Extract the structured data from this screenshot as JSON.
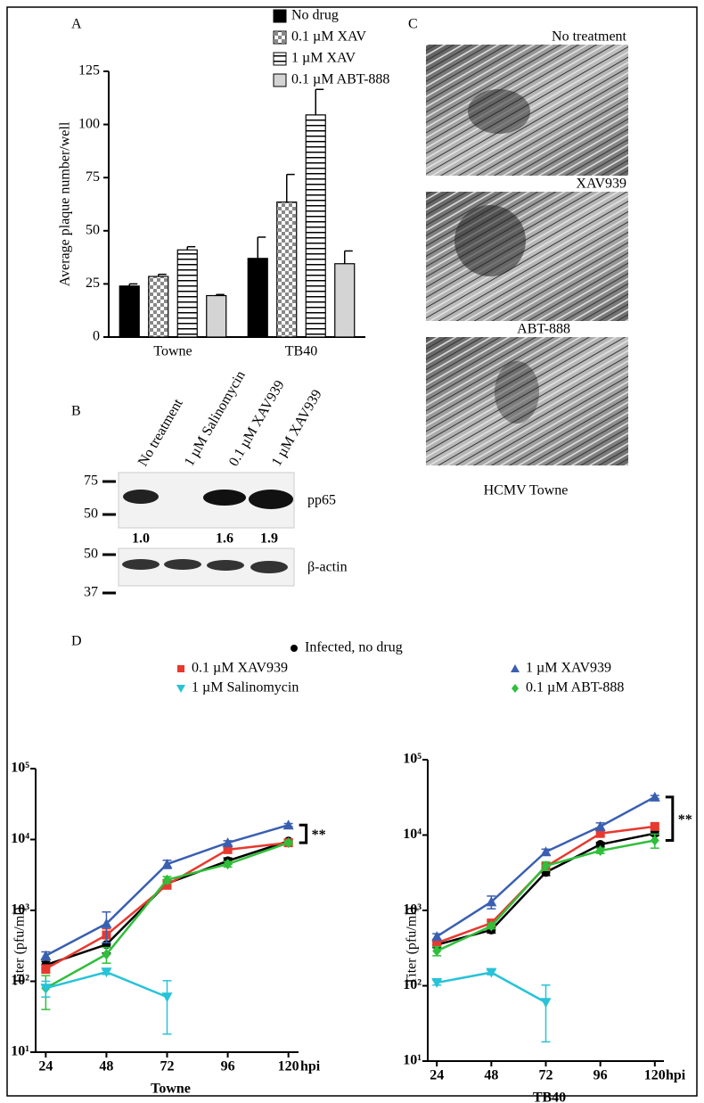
{
  "panels": {
    "a": "A",
    "b": "B",
    "c": "C",
    "d": "D"
  },
  "chart_data": [
    {
      "type": "bar",
      "ylabel": "Average plaque number/well",
      "categories": [
        "Towne",
        "TB40"
      ],
      "ylim": [
        0,
        125
      ],
      "yticks": [
        0,
        25,
        50,
        75,
        100,
        125
      ],
      "series": [
        {
          "name": "No drug",
          "color": "#000000",
          "pattern": "solid",
          "values": [
            24,
            37
          ],
          "errors": [
            1,
            10
          ]
        },
        {
          "name": "0.1 µM XAV",
          "color": "#888888",
          "pattern": "checker",
          "values": [
            28.5,
            63.5
          ],
          "errors": [
            1,
            13
          ]
        },
        {
          "name": "1 µM XAV",
          "color": "#000000",
          "pattern": "hstripes",
          "values": [
            41,
            104.5
          ],
          "errors": [
            1.5,
            12
          ]
        },
        {
          "name": "0.1 µM ABT-888",
          "color": "#d4d4d4",
          "pattern": "solid",
          "values": [
            19.5,
            34.5
          ],
          "errors": [
            0.5,
            6
          ]
        }
      ]
    },
    {
      "type": "line",
      "title": "Towne",
      "xlabel": "hpi",
      "ylabel": "Titer (pfu/ml)",
      "log_y": true,
      "annotation": "**",
      "x": [
        24,
        48,
        72,
        96,
        120
      ],
      "xlim": [
        20,
        124
      ],
      "xticks": [
        24,
        48,
        72,
        96,
        120
      ],
      "ylim": [
        10,
        100000
      ],
      "yticks": [
        {
          "value": 10,
          "label": "10¹"
        },
        {
          "value": 100,
          "label": "10²"
        },
        {
          "value": 1000,
          "label": "10³"
        },
        {
          "value": 10000,
          "label": "10⁴"
        },
        {
          "value": 100000,
          "label": "10⁵"
        }
      ],
      "series": [
        {
          "name": "Infected, no drug",
          "color": "#000000",
          "marker": "circle",
          "values": [
            170,
            330,
            2400,
            5000,
            9500
          ],
          "errors": [
            20,
            80,
            300,
            500,
            600
          ]
        },
        {
          "name": "0.1 µM XAV939",
          "color": "#e8392f",
          "marker": "square",
          "values": [
            150,
            450,
            2300,
            7200,
            9000
          ],
          "errors": [
            20,
            100,
            300,
            600,
            500
          ]
        },
        {
          "name": "1 µM XAV939",
          "color": "#3a5fb0",
          "marker": "triangle",
          "values": [
            230,
            650,
            4500,
            9000,
            16000
          ],
          "errors": [
            30,
            300,
            600,
            600,
            800
          ]
        },
        {
          "name": "0.1 µM ABT-888",
          "color": "#2fbf3a",
          "marker": "diamond",
          "values": [
            80,
            240,
            2700,
            4500,
            9000
          ],
          "errors": [
            40,
            60,
            300,
            400,
            500
          ]
        },
        {
          "name": "1 µM Salinomycin",
          "color": "#27c3d8",
          "marker": "tridown",
          "values": [
            80,
            135,
            60,
            null,
            null
          ],
          "errors": [
            20,
            10,
            42,
            null,
            null
          ]
        }
      ]
    },
    {
      "type": "line",
      "title": "TB40",
      "xlabel": "hpi",
      "ylabel": "Titer (pfu/ml)",
      "log_y": true,
      "annotation": "**",
      "x": [
        24,
        48,
        72,
        96,
        120
      ],
      "xlim": [
        20,
        124
      ],
      "xticks": [
        24,
        48,
        72,
        96,
        120
      ],
      "ylim": [
        10,
        100000
      ],
      "yticks": [
        {
          "value": 10,
          "label": "10¹"
        },
        {
          "value": 100,
          "label": "10²"
        },
        {
          "value": 1000,
          "label": "10³"
        },
        {
          "value": 10000,
          "label": "10⁴"
        },
        {
          "value": 100000,
          "label": "10⁵"
        }
      ],
      "series": [
        {
          "color": "#000000",
          "marker": "circle",
          "values": [
            350,
            550,
            3200,
            7500,
            10500
          ],
          "errors": [
            30,
            50,
            300,
            500,
            700
          ]
        },
        {
          "color": "#e8392f",
          "marker": "square",
          "values": [
            370,
            680,
            3800,
            10500,
            13000
          ],
          "errors": [
            30,
            60,
            400,
            800,
            900
          ]
        },
        {
          "color": "#3a5fb0",
          "marker": "triangle",
          "values": [
            450,
            1300,
            6000,
            13000,
            32000
          ],
          "errors": [
            40,
            250,
            500,
            1500,
            1500
          ]
        },
        {
          "color": "#2fbf3a",
          "marker": "diamond",
          "values": [
            290,
            620,
            3900,
            6200,
            8500
          ],
          "errors": [
            40,
            50,
            500,
            500,
            1800
          ]
        },
        {
          "color": "#27c3d8",
          "marker": "tridown",
          "values": [
            110,
            150,
            60,
            null,
            null
          ],
          "errors": [
            8,
            10,
            42,
            null,
            null
          ]
        }
      ]
    }
  ],
  "blot": {
    "lanes": [
      "No treatment",
      "1 µM Salinomycin",
      "0.1 µM XAV939",
      "1 µM XAV939"
    ],
    "rows": [
      {
        "label": "pp65",
        "markers": [
          75,
          50
        ],
        "quantities": [
          "1.0",
          null,
          "1.6",
          "1.9"
        ]
      },
      {
        "label": "β-actin",
        "markers": [
          50,
          37
        ]
      }
    ]
  },
  "micrographs": {
    "labels": [
      "No treatment",
      "XAV939",
      "ABT-888"
    ],
    "caption": "HCMV Towne"
  }
}
